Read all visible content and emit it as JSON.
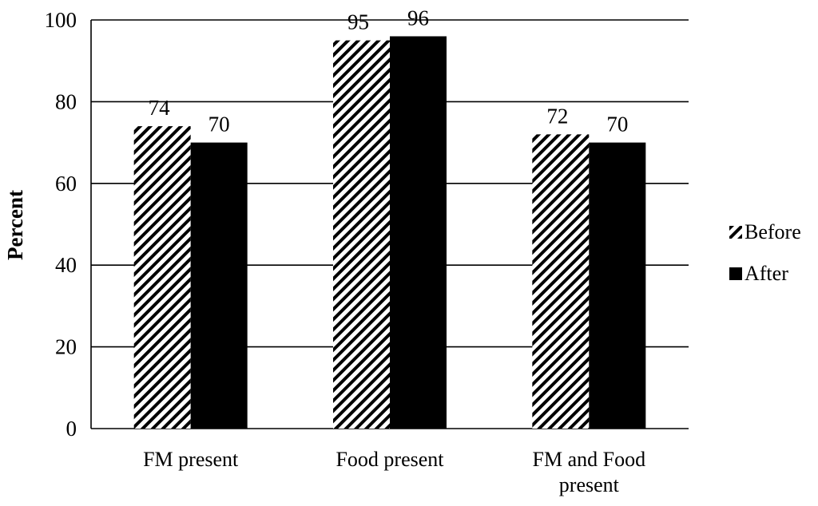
{
  "chart_data": {
    "type": "bar",
    "categories": [
      "FM present",
      "Food present",
      "FM and Food present"
    ],
    "category_lines": [
      [
        "FM present"
      ],
      [
        "Food present"
      ],
      [
        "FM and Food",
        "present"
      ]
    ],
    "series": [
      {
        "name": "Before",
        "values": [
          74,
          95,
          72
        ],
        "style": "hatched",
        "color": "#000000"
      },
      {
        "name": "After",
        "values": [
          70,
          96,
          70
        ],
        "style": "solid",
        "color": "#000000"
      }
    ],
    "ylabel": "Percent",
    "xlabel": "",
    "ylim": [
      0,
      100
    ],
    "yticks": [
      0,
      20,
      40,
      60,
      80,
      100
    ],
    "grid": true,
    "legend": "right",
    "data_labels": true
  }
}
